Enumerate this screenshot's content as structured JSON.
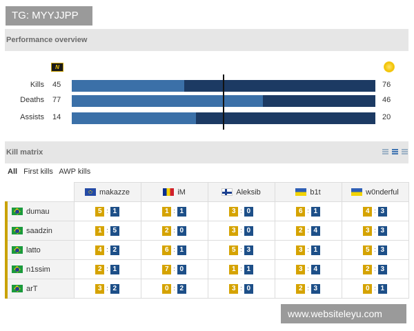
{
  "watermark_top": "TG: MYYJJPP",
  "watermark_bottom": "www.websiteleyu.com",
  "performance": {
    "title": "Performance overview",
    "team_a_logo": "na'vi-logo",
    "team_b_logo": "sun-logo",
    "rows": [
      {
        "label": "Kills",
        "left": "45",
        "right": "76",
        "left_share": 0.37
      },
      {
        "label": "Deaths",
        "left": "77",
        "right": "46",
        "left_share": 0.63
      },
      {
        "label": "Assists",
        "left": "14",
        "right": "20",
        "left_share": 0.41
      }
    ],
    "colors": {
      "left": "#3b70a8",
      "right": "#1c3a63"
    }
  },
  "kill_matrix": {
    "title": "Kill matrix",
    "filters": [
      "All",
      "First kills",
      "AWP kills"
    ],
    "active_filter": "All",
    "columns": [
      {
        "name": "makazze",
        "flag": "eu"
      },
      {
        "name": "iM",
        "flag": "ro"
      },
      {
        "name": "Aleksib",
        "flag": "fi"
      },
      {
        "name": "b1t",
        "flag": "ua"
      },
      {
        "name": "w0nderful",
        "flag": "ua"
      }
    ],
    "rows": [
      {
        "name": "dumau",
        "flag": "br",
        "cells": [
          [
            "5",
            "1"
          ],
          [
            "1",
            "1"
          ],
          [
            "3",
            "0"
          ],
          [
            "6",
            "1"
          ],
          [
            "4",
            "3"
          ]
        ]
      },
      {
        "name": "saadzin",
        "flag": "br",
        "cells": [
          [
            "1",
            "5"
          ],
          [
            "2",
            "0"
          ],
          [
            "3",
            "0"
          ],
          [
            "2",
            "4"
          ],
          [
            "3",
            "3"
          ]
        ]
      },
      {
        "name": "latto",
        "flag": "br",
        "cells": [
          [
            "4",
            "2"
          ],
          [
            "6",
            "1"
          ],
          [
            "5",
            "3"
          ],
          [
            "3",
            "1"
          ],
          [
            "5",
            "3"
          ]
        ]
      },
      {
        "name": "n1ssim",
        "flag": "br",
        "cells": [
          [
            "2",
            "1"
          ],
          [
            "7",
            "0"
          ],
          [
            "1",
            "1"
          ],
          [
            "3",
            "4"
          ],
          [
            "2",
            "3"
          ]
        ]
      },
      {
        "name": "arT",
        "flag": "br",
        "cells": [
          [
            "3",
            "2"
          ],
          [
            "0",
            "2"
          ],
          [
            "3",
            "0"
          ],
          [
            "2",
            "3"
          ],
          [
            "0",
            "1"
          ]
        ]
      }
    ],
    "colors": {
      "kill_pill": "#d5a300",
      "death_pill": "#1d4f88",
      "row_accent": "#c9a200"
    }
  }
}
